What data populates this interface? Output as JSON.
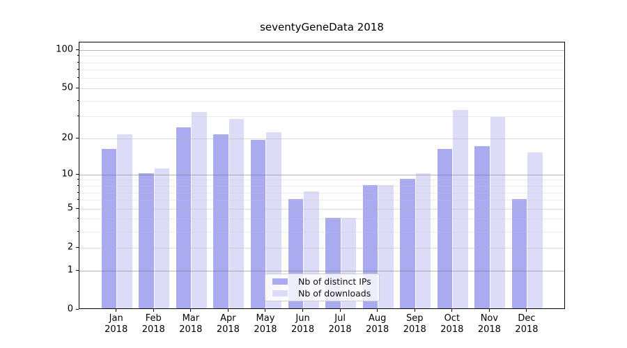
{
  "title": "seventyGeneData 2018",
  "chart_data": {
    "type": "bar",
    "title": "seventyGeneData 2018",
    "categories": [
      "Jan 2018",
      "Feb 2018",
      "Mar 2018",
      "Apr 2018",
      "May 2018",
      "Jun 2018",
      "Jul 2018",
      "Aug 2018",
      "Sep 2018",
      "Oct 2018",
      "Nov 2018",
      "Dec 2018"
    ],
    "series": [
      {
        "name": "Nb of distinct IPs",
        "color": "#aaaaf0",
        "values": [
          16,
          10,
          24,
          21,
          19,
          6,
          4,
          8,
          9,
          16,
          17,
          6
        ]
      },
      {
        "name": "Nb of downloads",
        "color": "#dcdcf8",
        "values": [
          21,
          11,
          32,
          28,
          22,
          7,
          4,
          8,
          10,
          33,
          29,
          15
        ]
      }
    ],
    "yscale": "log1p",
    "ylim": [
      0,
      115
    ],
    "y_tick_labels": [
      100,
      50,
      20,
      10,
      5,
      2,
      1,
      0
    ],
    "y_gridlines_major": [
      2,
      5,
      20,
      50
    ],
    "y_gridlines_power": [
      1,
      10,
      100
    ],
    "y_gridlines_minor": [
      3,
      4,
      6,
      7,
      8,
      9,
      30,
      40,
      60,
      70,
      80,
      90
    ],
    "grid": true,
    "legend_position": "lower center",
    "colors": {
      "background": "#ffffff",
      "spine": "#000000",
      "text": "#000000",
      "grid_power": "rgba(110,110,110,0.50)",
      "grid_major": "rgba(175,175,175,0.45)",
      "grid_minor": "rgba(200,200,200,0.35)",
      "legend_border": "#cccccc",
      "legend_background": "rgba(255,255,255,0.8)"
    }
  }
}
